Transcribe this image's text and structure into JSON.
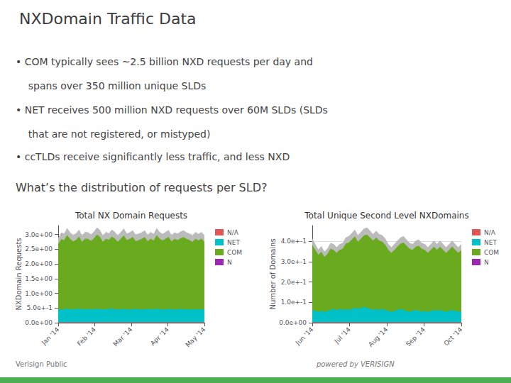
{
  "title": "NXDomain Traffic Data",
  "annotations": [
    "• COM typically sees ~2.5 billion NXD requests per day and",
    "    spans over 350 million unique SLDs",
    "• NET receives 500 million NXD requests over 60M SLDs (SLDs",
    "    that are not registered, or mistyped)",
    "• ccTLDs receive significantly less traffic, and less NXD",
    "What’s the distribution of requests per SLD?",
    "Verisign Public",
    "powered by VERISIGN"
  ],
  "chart_data": [
    {
      "type": "area",
      "title": "Total NX Domain Requests",
      "ylabel": "NXDomain Requests",
      "stacked": true,
      "grid": true,
      "legend": "right",
      "x": [
        0,
        1,
        2,
        3,
        4,
        5,
        6,
        7,
        8,
        9,
        10,
        11,
        12,
        13,
        14,
        15,
        16,
        17,
        18,
        19,
        20,
        21,
        22,
        23,
        24,
        25,
        26,
        27,
        28,
        29,
        30,
        31,
        32,
        33,
        34,
        35,
        36,
        37,
        38,
        39,
        40,
        41,
        42,
        43,
        44,
        45,
        46,
        47,
        48,
        49
      ],
      "xlim": [
        0,
        49
      ],
      "xticks": [
        {
          "value": 0,
          "label": "Jan '14"
        },
        {
          "value": 12.25,
          "label": "Feb '14"
        },
        {
          "value": 24.5,
          "label": "Mar '14"
        },
        {
          "value": 36.75,
          "label": "Apr '14"
        },
        {
          "value": 49,
          "label": "May '14"
        }
      ],
      "ylim": [
        0,
        3.3048
      ],
      "yticks": [
        {
          "value": 0,
          "label": "0.0e+00"
        },
        {
          "value": 0.5,
          "label": "5.0e+-1"
        },
        {
          "value": 1,
          "label": "1.0e+00"
        },
        {
          "value": 1.5,
          "label": "1.5e+00"
        },
        {
          "value": 2,
          "label": "2.0e+00"
        },
        {
          "value": 2.5,
          "label": "2.5e+00"
        },
        {
          "value": 3,
          "label": "3.0e+00"
        }
      ],
      "series": [
        {
          "name": "N/A",
          "color": "#e05555",
          "values": [
            0.02,
            0.02,
            0.02,
            0.02,
            0.02,
            0.02,
            0.02,
            0.02,
            0.02,
            0.02,
            0.02,
            0.02,
            0.02,
            0.02,
            0.02,
            0.02,
            0.02,
            0.02,
            0.02,
            0.02,
            0.02,
            0.02,
            0.02,
            0.02,
            0.02,
            0.02,
            0.02,
            0.02,
            0.02,
            0.02,
            0.02,
            0.02,
            0.02,
            0.02,
            0.02,
            0.02,
            0.02,
            0.02,
            0.02,
            0.02,
            0.02,
            0.02,
            0.02,
            0.02,
            0.02,
            0.02,
            0.02,
            0.02,
            0.02,
            0.02
          ]
        },
        {
          "name": "NET",
          "color": "#00c0c8",
          "values": [
            0.45,
            0.42,
            0.44,
            0.46,
            0.43,
            0.44,
            0.45,
            0.46,
            0.43,
            0.44,
            0.45,
            0.44,
            0.43,
            0.46,
            0.44,
            0.43,
            0.44,
            0.45,
            0.46,
            0.44,
            0.43,
            0.44,
            0.45,
            0.44,
            0.43,
            0.44,
            0.45,
            0.44,
            0.43,
            0.44,
            0.45,
            0.44,
            0.43,
            0.46,
            0.44,
            0.43,
            0.44,
            0.45,
            0.44,
            0.43,
            0.44,
            0.45,
            0.44,
            0.43,
            0.44,
            0.43,
            0.44,
            0.43,
            0.44,
            0.43
          ]
        },
        {
          "name": "COM",
          "color": "#6aaa1e",
          "values": [
            2.2,
            2.4,
            2.35,
            2.5,
            2.4,
            2.3,
            2.35,
            2.45,
            2.3,
            2.4,
            2.38,
            2.32,
            2.42,
            2.52,
            2.46,
            2.3,
            2.4,
            2.35,
            2.45,
            2.4,
            2.3,
            2.4,
            2.5,
            2.35,
            2.4,
            2.45,
            2.3,
            2.35,
            2.4,
            2.45,
            2.3,
            2.4,
            2.35,
            2.5,
            2.4,
            2.35,
            2.4,
            2.45,
            2.3,
            2.4,
            2.35,
            2.4,
            2.45,
            2.4,
            2.35,
            2.3,
            2.4,
            2.35,
            2.4,
            2.3
          ]
        },
        {
          "color": "#bbbbbb",
          "values": [
            0.2136,
            0.2272,
            0.2248,
            0.2384,
            0.228,
            0.2208,
            0.2256,
            0.2344,
            0.22,
            0.2288,
            0.228,
            0.2224,
            0.2296,
            0.24,
            0.2336,
            0.22,
            0.2288,
            0.2256,
            0.2344,
            0.2288,
            0.22,
            0.2288,
            0.2376,
            0.2248,
            0.228,
            0.2328,
            0.2216,
            0.2248,
            0.228,
            0.2328,
            0.2216,
            0.2288,
            0.224,
            0.2384,
            0.2288,
            0.224,
            0.2288,
            0.2336,
            0.2208,
            0.228,
            0.2248,
            0.2296,
            0.2328,
            0.228,
            0.2248,
            0.22,
            0.2288,
            0.224,
            0.2288,
            0.22
          ]
        },
        {
          "name": "N",
          "color": "#9c27b0",
          "values": [
            null,
            null,
            null,
            null,
            null,
            null,
            null,
            null,
            null,
            null,
            null,
            null,
            null,
            null,
            null,
            null,
            null,
            null,
            null,
            null,
            null,
            null,
            null,
            null,
            null,
            null,
            null,
            null,
            null,
            null,
            null,
            null,
            null,
            null,
            null,
            null,
            null,
            null,
            null,
            null,
            null,
            null,
            null,
            null,
            null,
            null,
            null,
            null,
            null,
            null
          ]
        }
      ]
    },
    {
      "type": "area",
      "title": "Total Unique Second Level NXDomains",
      "ylabel": "Number of Domains",
      "stacked": true,
      "grid": true,
      "legend": "right",
      "x": [
        0,
        1,
        2,
        3,
        4,
        5,
        6,
        7,
        8,
        9,
        10,
        11,
        12,
        13,
        14,
        15,
        16,
        17,
        18,
        19,
        20,
        21,
        22,
        23,
        24,
        25,
        26,
        27,
        28,
        29,
        30,
        31,
        32,
        33,
        34,
        35,
        36,
        37,
        38,
        39,
        40,
        41,
        42,
        43,
        44,
        45,
        46,
        47,
        48,
        49
      ],
      "xlim": [
        0,
        49
      ],
      "xticks": [
        {
          "value": 0,
          "label": "Jun '14"
        },
        {
          "value": 12.25,
          "label": "Jul '14"
        },
        {
          "value": 24.5,
          "label": "Aug '14"
        },
        {
          "value": 36.75,
          "label": "Sep '14"
        },
        {
          "value": 49,
          "label": "Oct '14"
        }
      ],
      "ylim": [
        0,
        0.4769928
      ],
      "yticks": [
        {
          "value": 0,
          "label": "0.0e+00"
        },
        {
          "value": 0.1,
          "label": "1.0e+-1"
        },
        {
          "value": 0.2,
          "label": "2.0e+-1"
        },
        {
          "value": 0.3,
          "label": "3.0e+-1"
        },
        {
          "value": 0.4,
          "label": "4.0e+-1"
        }
      ],
      "series": [
        {
          "name": "N/A",
          "color": "#e05555",
          "values": [
            0.003,
            0.003,
            0.003,
            0.003,
            0.003,
            0.003,
            0.003,
            0.003,
            0.003,
            0.003,
            0.003,
            0.003,
            0.003,
            0.003,
            0.003,
            0.003,
            0.003,
            0.003,
            0.003,
            0.003,
            0.003,
            0.003,
            0.003,
            0.003,
            0.003,
            0.003,
            0.003,
            0.003,
            0.003,
            0.003,
            0.003,
            0.003,
            0.003,
            0.003,
            0.003,
            0.003,
            0.003,
            0.003,
            0.003,
            0.003,
            0.003,
            0.003,
            0.003,
            0.003,
            0.003,
            0.003,
            0.003,
            0.003,
            0.003,
            0.003
          ]
        },
        {
          "name": "NET",
          "color": "#00c0c8",
          "values": [
            0.06,
            0.055,
            0.05,
            0.055,
            0.05,
            0.055,
            0.06,
            0.065,
            0.06,
            0.065,
            0.06,
            0.065,
            0.06,
            0.065,
            0.07,
            0.065,
            0.07,
            0.075,
            0.07,
            0.065,
            0.06,
            0.065,
            0.06,
            0.065,
            0.06,
            0.055,
            0.05,
            0.055,
            0.06,
            0.065,
            0.06,
            0.055,
            0.05,
            0.055,
            0.06,
            0.055,
            0.05,
            0.055,
            0.05,
            0.055,
            0.06,
            0.055,
            0.06,
            0.055,
            0.05,
            0.055,
            0.06,
            0.055,
            0.05,
            0.055
          ]
        },
        {
          "name": "COM",
          "color": "#6aaa1e",
          "values": [
            0.32,
            0.3,
            0.28,
            0.29,
            0.27,
            0.28,
            0.3,
            0.29,
            0.28,
            0.29,
            0.3,
            0.32,
            0.33,
            0.34,
            0.35,
            0.33,
            0.34,
            0.35,
            0.36,
            0.35,
            0.34,
            0.35,
            0.34,
            0.33,
            0.32,
            0.3,
            0.29,
            0.3,
            0.31,
            0.32,
            0.33,
            0.32,
            0.31,
            0.3,
            0.31,
            0.32,
            0.31,
            0.3,
            0.29,
            0.3,
            0.31,
            0.3,
            0.31,
            0.3,
            0.29,
            0.3,
            0.31,
            0.3,
            0.29,
            0.3
          ]
        },
        {
          "color": "#bbbbbb",
          "values": [
            0.03064,
            0.02864,
            0.02664,
            0.02784,
            0.02584,
            0.02704,
            0.02904,
            0.02864,
            0.02744,
            0.02864,
            0.02904,
            0.03104,
            0.03144,
            0.03264,
            0.03384,
            0.03184,
            0.03304,
            0.03424,
            0.03464,
            0.03344,
            0.03224,
            0.03344,
            0.03224,
            0.03184,
            0.03064,
            0.02864,
            0.02744,
            0.02864,
            0.02984,
            0.03104,
            0.03144,
            0.03024,
            0.02904,
            0.02864,
            0.02984,
            0.03024,
            0.02904,
            0.02864,
            0.02744,
            0.02864,
            0.02984,
            0.02864,
            0.02984,
            0.02864,
            0.02744,
            0.02864,
            0.02984,
            0.02864,
            0.02744,
            0.02864
          ]
        },
        {
          "name": "N",
          "color": "#9c27b0",
          "values": [
            null,
            null,
            null,
            null,
            null,
            null,
            null,
            null,
            null,
            null,
            null,
            null,
            null,
            null,
            null,
            null,
            null,
            null,
            null,
            null,
            null,
            null,
            null,
            null,
            null,
            null,
            null,
            null,
            null,
            null,
            null,
            null,
            null,
            null,
            null,
            null,
            null,
            null,
            null,
            null,
            null,
            null,
            null,
            null,
            null,
            null,
            null,
            null,
            null,
            null
          ]
        }
      ]
    }
  ]
}
